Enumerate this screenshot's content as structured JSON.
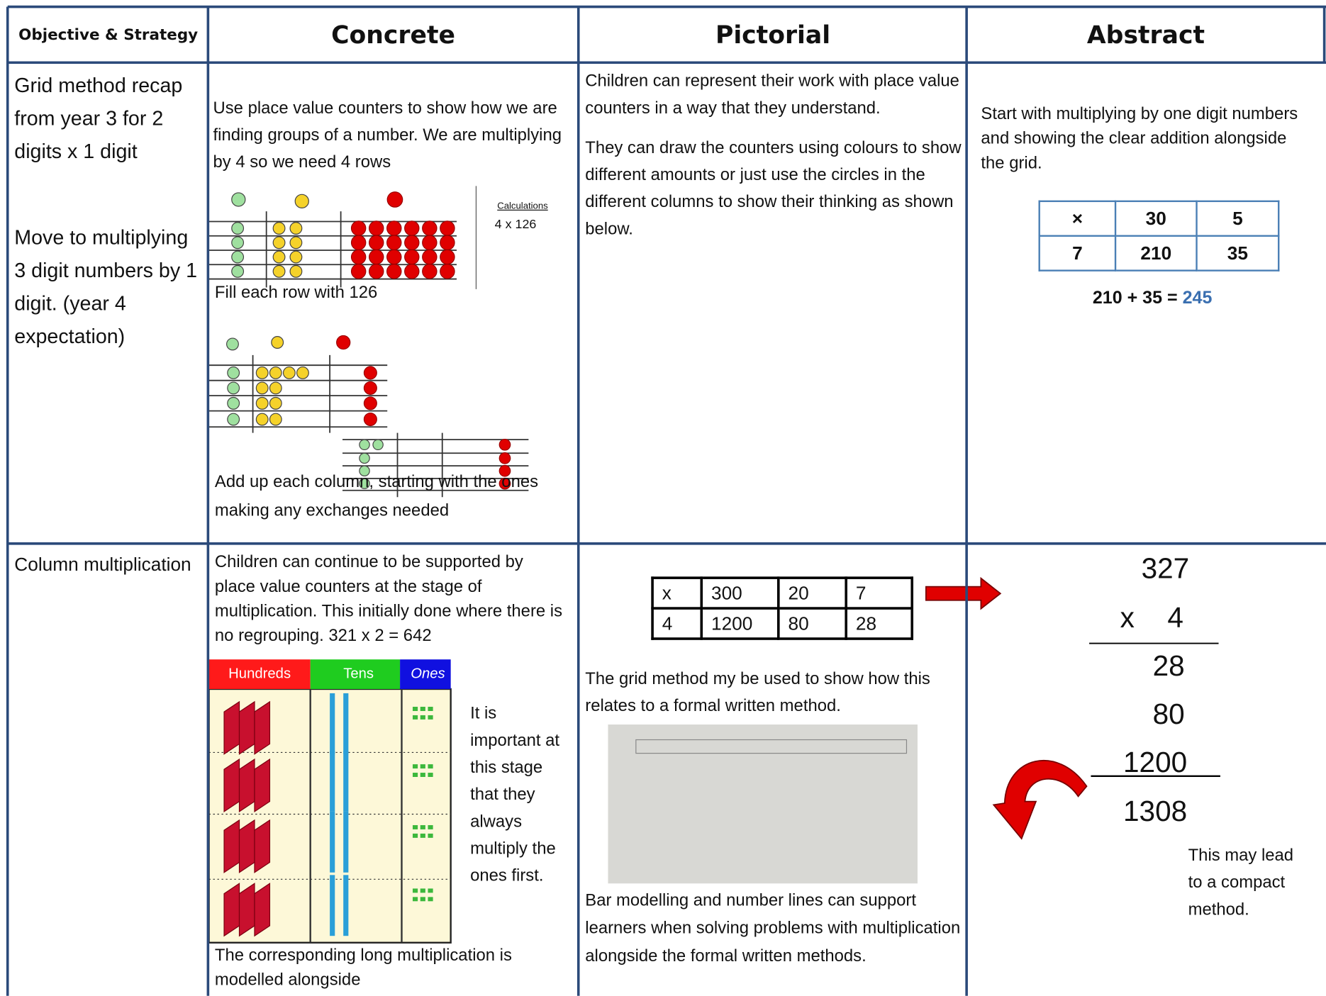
{
  "header": {
    "objective": "Objective & Strategy",
    "concrete": "Concrete",
    "pictorial": "Pictorial",
    "abstract": "Abstract"
  },
  "rows": [
    {
      "objective": [
        "Grid method recap from year 3 for 2 digits x 1 digit",
        "Move to multiplying 3 digit numbers by 1 digit. (year 4 expectation)"
      ],
      "concrete": {
        "intro": "Use place value counters to show how we are finding groups of a number. We are multiplying by 4 so we need 4 rows",
        "calc_title": "Calculations",
        "calc": "4 x 126",
        "step1": "Fill each row with 126",
        "step2": "Add up each column, starting with the ones making any exchanges needed"
      },
      "pictorial": [
        "Children can represent their work with place value counters in a way that they understand.",
        "They can draw the counters using colours to show different amounts or just use the circles in the different columns to show their thinking as shown below."
      ],
      "abstract": {
        "text": "Start with multiplying by one digit numbers and showing the clear addition alongside the grid.",
        "grid": [
          [
            "×",
            "30",
            "5"
          ],
          [
            "7",
            "210",
            "35"
          ]
        ],
        "sum": "210 + 35 =",
        "result": "245"
      }
    },
    {
      "objective": "Column multiplication",
      "concrete": {
        "intro": "Children can continue to be supported by place value counters at the stage of multiplication. This initially done where there is no regrouping. 321 x 2 = 642",
        "headers": [
          "Hundreds",
          "Tens",
          "Ones"
        ],
        "note": "It is important at this stage that they always multiply the ones first.",
        "footer": "The corresponding long multiplication is modelled alongside"
      },
      "pictorial": {
        "grid": [
          [
            "x",
            "300",
            "20",
            "7"
          ],
          [
            "4",
            "1200",
            "80",
            "28"
          ]
        ],
        "text1": "The grid method my be used to show how this relates to a formal written method.",
        "text2": "Bar modelling and number lines can support learners when solving problems with multiplication alongside the formal written methods."
      },
      "abstract": {
        "lines": [
          "327",
          "x",
          "4",
          "28",
          "80",
          "1200",
          "1308"
        ],
        "note": "This may lead to a compact method."
      }
    }
  ]
}
